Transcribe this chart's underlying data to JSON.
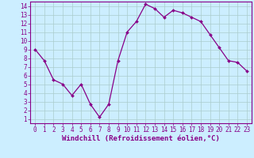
{
  "x": [
    0,
    1,
    2,
    3,
    4,
    5,
    6,
    7,
    8,
    9,
    10,
    11,
    12,
    13,
    14,
    15,
    16,
    17,
    18,
    19,
    20,
    21,
    22,
    23
  ],
  "y": [
    9.0,
    7.7,
    5.5,
    5.0,
    3.7,
    5.0,
    2.7,
    1.2,
    2.7,
    7.7,
    11.0,
    12.2,
    14.2,
    13.7,
    12.7,
    13.5,
    13.2,
    12.7,
    12.2,
    10.7,
    9.2,
    7.7,
    7.5,
    6.5
  ],
  "line_color": "#880088",
  "marker": "D",
  "markersize": 2.0,
  "linewidth": 0.9,
  "bg_color": "#cceeff",
  "grid_color": "#aacccc",
  "xlabel": "Windchill (Refroidissement éolien,°C)",
  "xlabel_fontsize": 6.5,
  "xlabel_color": "#880088",
  "xlim": [
    -0.5,
    23.5
  ],
  "ylim": [
    0.5,
    14.5
  ],
  "xticks": [
    0,
    1,
    2,
    3,
    4,
    5,
    6,
    7,
    8,
    9,
    10,
    11,
    12,
    13,
    14,
    15,
    16,
    17,
    18,
    19,
    20,
    21,
    22,
    23
  ],
  "yticks": [
    1,
    2,
    3,
    4,
    5,
    6,
    7,
    8,
    9,
    10,
    11,
    12,
    13,
    14
  ],
  "tick_fontsize": 5.5,
  "tick_color": "#880088",
  "spine_color": "#880088"
}
